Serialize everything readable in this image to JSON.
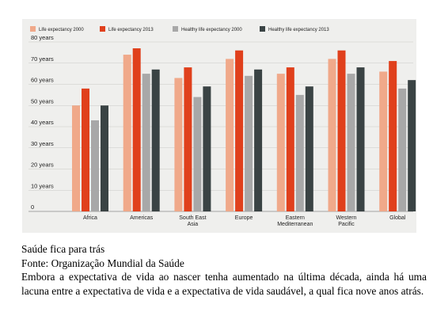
{
  "chart_data": {
    "type": "bar",
    "categories": [
      [
        "Africa"
      ],
      [
        "Americas"
      ],
      [
        "South East",
        "Asia"
      ],
      [
        "Europe"
      ],
      [
        "Eastern",
        "Mediterranean"
      ],
      [
        "Western",
        "Pacific"
      ],
      [
        "Global"
      ]
    ],
    "series": [
      {
        "name": "Life expectancy 2000",
        "color": "#f0a98a",
        "values": [
          50,
          74,
          63,
          72,
          65,
          72,
          66
        ]
      },
      {
        "name": "Life expectancy 2013",
        "color": "#e0401c",
        "values": [
          58,
          77,
          68,
          76,
          68,
          76,
          71
        ]
      },
      {
        "name": "Healthy life expectancy 2000",
        "color": "#a8a8a8",
        "values": [
          43,
          65,
          54,
          64,
          55,
          65,
          58
        ]
      },
      {
        "name": "Healthy life expectancy 2013",
        "color": "#3a4344",
        "values": [
          50,
          67,
          59,
          67,
          59,
          68,
          62
        ]
      }
    ],
    "ylim": [
      0,
      80
    ],
    "yticks": [
      0,
      10,
      20,
      30,
      40,
      50,
      60,
      70,
      80
    ],
    "ytick_labels": [
      "0",
      "10 years",
      "20 years",
      "30 years",
      "40 years",
      "50 years",
      "60 years",
      "70 years",
      "80 years"
    ],
    "grid": true,
    "legend_position": "top"
  },
  "caption": {
    "line1": "Saúde fica para trás",
    "line2": "Fonte: Organização Mundial da Saúde",
    "body": "Embora a expectativa de vida ao nascer tenha aumentado na última década, ainda há uma lacuna entre a expectativa de vida e a expectativa de vida saudável, a qual fica nove anos atrás."
  }
}
